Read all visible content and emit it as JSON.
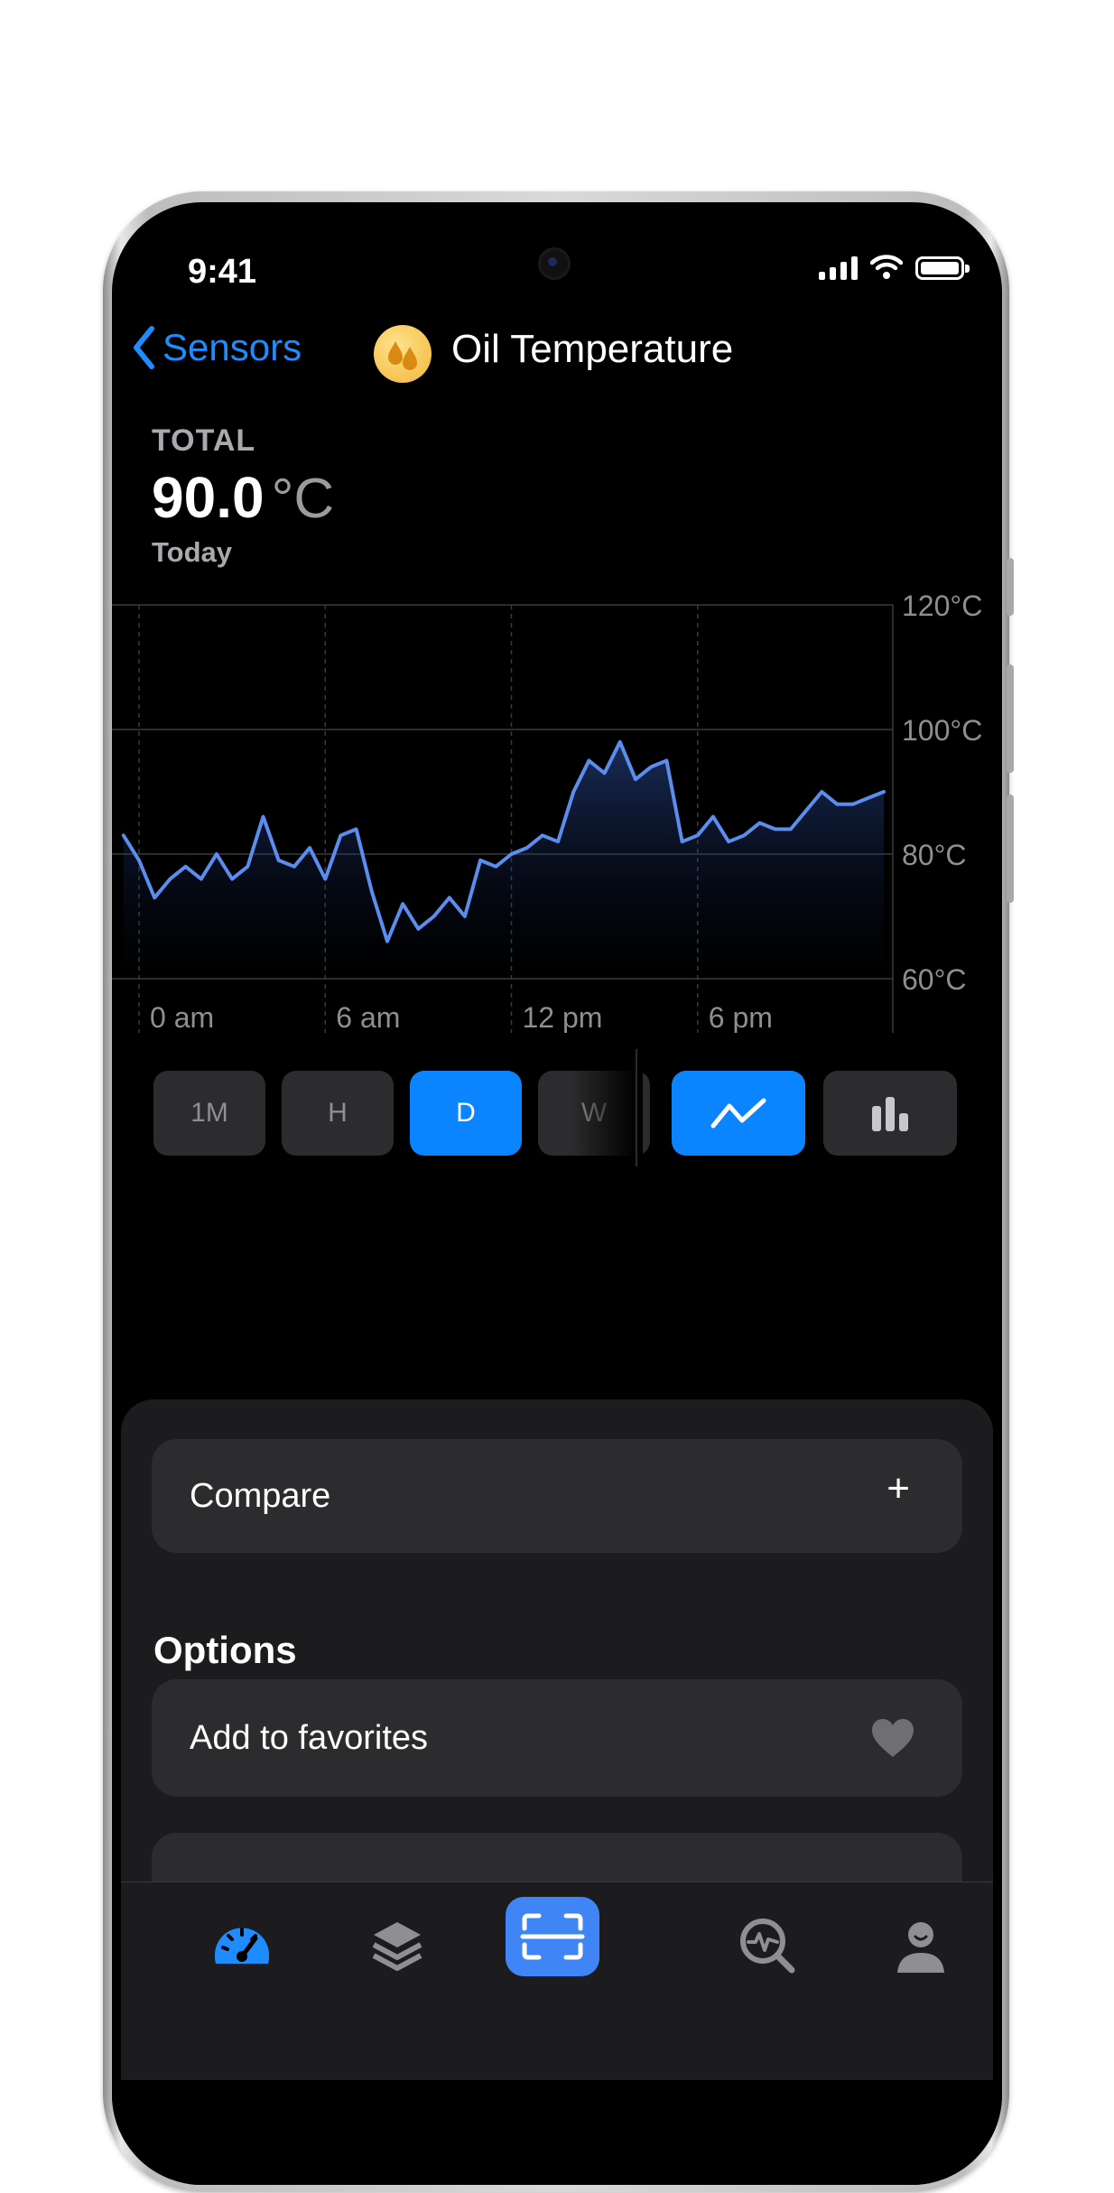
{
  "status": {
    "time": "9:41"
  },
  "nav": {
    "back_label": "Sensors",
    "title": "Oil Temperature"
  },
  "summary": {
    "label": "TOTAL",
    "value": "90.0",
    "unit": "°C",
    "period": "Today"
  },
  "chart_data": {
    "type": "area",
    "x_tick_labels": [
      "0 am",
      "6 am",
      "12 pm",
      "6 pm"
    ],
    "y_tick_labels": [
      "120°C",
      "100°C",
      "80°C",
      "60°C"
    ],
    "ylim": [
      60,
      120
    ],
    "xlim": [
      0,
      24
    ],
    "grid": true,
    "series": [
      {
        "color": "#5b8def",
        "x": [
          -0.5,
          0,
          0.5,
          1,
          1.5,
          2,
          2.5,
          3,
          3.5,
          4,
          4.5,
          5,
          5.5,
          6,
          6.5,
          7,
          7.5,
          8,
          8.5,
          9,
          9.5,
          10,
          10.5,
          11,
          11.5,
          12,
          12.5,
          13,
          13.5,
          14,
          14.5,
          15,
          15.5,
          16,
          16.5,
          17,
          17.5,
          18,
          18.5,
          19,
          19.5,
          20,
          20.5,
          21,
          21.5,
          22,
          22.5,
          23,
          23.5,
          24
        ],
        "y": [
          83,
          79,
          73,
          76,
          78,
          76,
          80,
          76,
          78,
          86,
          79,
          78,
          81,
          76,
          83,
          84,
          74,
          66,
          72,
          68,
          70,
          73,
          70,
          79,
          78,
          80,
          81,
          83,
          82,
          90,
          95,
          93,
          98,
          92,
          94,
          95,
          82,
          83,
          86,
          82,
          83,
          85,
          84,
          84,
          87,
          90,
          88,
          88,
          89,
          90
        ]
      }
    ]
  },
  "segments": {
    "items": [
      "1M",
      "H",
      "D",
      "W"
    ],
    "active": "D"
  },
  "chart_types": {
    "line": "line-chart",
    "bar": "bar-chart",
    "active": "line"
  },
  "sheet": {
    "compare_label": "Compare",
    "compare_action": "+",
    "options_heading": "Options",
    "favorites_label": "Add to favorites"
  },
  "tabs": [
    "dashboard",
    "layers",
    "scan",
    "diagnostics",
    "profile"
  ],
  "colors": {
    "accent": "#0a84ff",
    "chart_line": "#5b8def",
    "background": "#000000"
  }
}
